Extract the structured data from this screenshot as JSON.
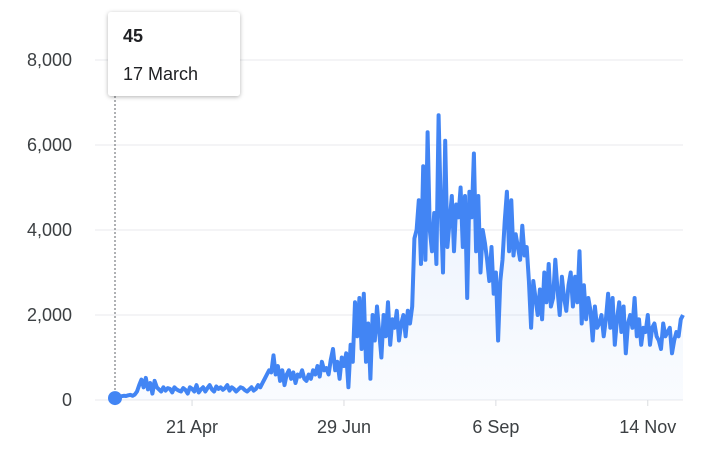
{
  "chart_data": {
    "type": "line",
    "color": "#4285f4",
    "grid": true,
    "tooltip_label": "17 March",
    "ylim": [
      0,
      8000
    ],
    "yticks": [
      0,
      {
        "value": 2000,
        "label": "2,000"
      },
      {
        "value": 4000,
        "label": "4,000"
      },
      {
        "value": 6000,
        "label": "6,000"
      },
      {
        "value": 8000,
        "label": "8,000"
      }
    ],
    "categories": [
      null,
      null,
      null,
      null,
      null,
      null,
      null,
      null,
      null,
      null,
      null,
      null,
      null,
      null,
      null,
      null,
      null,
      null,
      null,
      null,
      null,
      null,
      null,
      null,
      null,
      null,
      null,
      null,
      null,
      null,
      null,
      null,
      null,
      null,
      null,
      "21 Apr",
      null,
      null,
      null,
      null,
      null,
      null,
      null,
      null,
      null,
      null,
      null,
      null,
      null,
      null,
      null,
      null,
      null,
      null,
      null,
      null,
      null,
      null,
      null,
      null,
      null,
      null,
      null,
      null,
      null,
      null,
      null,
      null,
      null,
      null,
      null,
      null,
      null,
      null,
      null,
      null,
      null,
      null,
      null,
      null,
      null,
      null,
      null,
      null,
      null,
      null,
      null,
      null,
      null,
      null,
      null,
      null,
      null,
      null,
      null,
      null,
      null,
      null,
      null,
      null,
      null,
      null,
      null,
      null,
      "29 Jun",
      null,
      null,
      null,
      null,
      null,
      null,
      null,
      null,
      null,
      null,
      null,
      null,
      null,
      null,
      null,
      null,
      null,
      null,
      null,
      null,
      null,
      null,
      null,
      null,
      null,
      null,
      null,
      null,
      null,
      null,
      null,
      null,
      null,
      null,
      null,
      null,
      null,
      null,
      null,
      null,
      null,
      null,
      null,
      null,
      null,
      null,
      null,
      null,
      null,
      null,
      null,
      null,
      null,
      null,
      null,
      null,
      null,
      null,
      null,
      null,
      null,
      null,
      null,
      null,
      null,
      null,
      null,
      null,
      "6 Sep",
      null,
      null,
      null,
      null,
      null,
      null,
      null,
      null,
      null,
      null,
      null,
      null,
      null,
      null,
      null,
      null,
      null,
      null,
      null,
      null,
      null,
      null,
      null,
      null,
      null,
      null,
      null,
      null,
      null,
      null,
      null,
      null,
      null,
      null,
      null,
      null,
      null,
      null,
      null,
      null,
      null,
      null,
      null,
      null,
      null,
      null,
      null,
      null,
      null,
      null,
      null,
      null,
      null,
      null,
      null,
      null,
      null,
      null,
      null,
      null,
      null,
      null,
      null,
      null,
      null,
      null,
      null,
      null,
      "14 Nov",
      null,
      null,
      null,
      null,
      null,
      null,
      null,
      null,
      null,
      null,
      null,
      null,
      null,
      null,
      null,
      null
    ],
    "values": [
      45,
      60,
      80,
      90,
      100,
      95,
      110,
      120,
      100,
      130,
      200,
      350,
      480,
      300,
      520,
      250,
      400,
      150,
      450,
      300,
      250,
      200,
      300,
      220,
      280,
      260,
      180,
      300,
      250,
      220,
      200,
      280,
      240,
      150,
      300,
      260,
      200,
      350,
      180,
      250,
      300,
      200,
      280,
      350,
      250,
      200,
      320,
      260,
      300,
      240,
      280,
      350,
      220,
      300,
      260,
      200,
      250,
      300,
      280,
      230,
      200,
      250,
      300,
      220,
      260,
      350,
      300,
      400,
      500,
      600,
      700,
      650,
      1050,
      600,
      800,
      450,
      700,
      350,
      600,
      700,
      500,
      650,
      400,
      600,
      550,
      700,
      500,
      450,
      600,
      500,
      700,
      600,
      800,
      550,
      900,
      700,
      750,
      600,
      950,
      1200,
      700,
      900,
      500,
      1000,
      800,
      1100,
      300,
      1300,
      900,
      2300,
      1500,
      2400,
      1200,
      2500,
      900,
      1800,
      500,
      2000,
      1400,
      2200,
      1600,
      1000,
      2000,
      1500,
      2300,
      1300,
      1900,
      1700,
      2100,
      1400,
      1800,
      2000,
      1500,
      2100,
      1800,
      2200,
      3800,
      4000,
      4700,
      3200,
      5500,
      3300,
      6300,
      4000,
      3500,
      4400,
      3200,
      6700,
      4500,
      3000,
      6100,
      3600,
      4200,
      4800,
      3500,
      4600,
      4300,
      5000,
      3600,
      4800,
      2400,
      4900,
      4300,
      5800,
      3500,
      4800,
      3000,
      4000,
      3700,
      3300,
      2800,
      3600,
      2500,
      3000,
      1400,
      2800,
      3300,
      4200,
      4900,
      3500,
      4700,
      3400,
      3900,
      3600,
      3300,
      4100,
      3400,
      3600,
      2800,
      1700,
      2800,
      2400,
      2000,
      2600,
      1900,
      3000,
      2300,
      3200,
      2200,
      2400,
      3300,
      2600,
      2000,
      2900,
      2400,
      2100,
      2700,
      3000,
      2200,
      2900,
      2300,
      3500,
      1800,
      2700,
      1900,
      2400,
      2100,
      1400,
      2200,
      1700,
      1800,
      2000,
      1500,
      1900,
      2500,
      1700,
      2400,
      1300,
      1900,
      2300,
      1600,
      2200,
      1100,
      1800,
      2000,
      1700,
      2400,
      1500,
      1900,
      1300,
      1700,
      1600,
      2000,
      1300,
      1700,
      1800,
      1500,
      1400,
      1200,
      1800,
      1500,
      1600,
      1700,
      1100,
      1400,
      1600,
      1500,
      1900,
      2000
    ]
  }
}
